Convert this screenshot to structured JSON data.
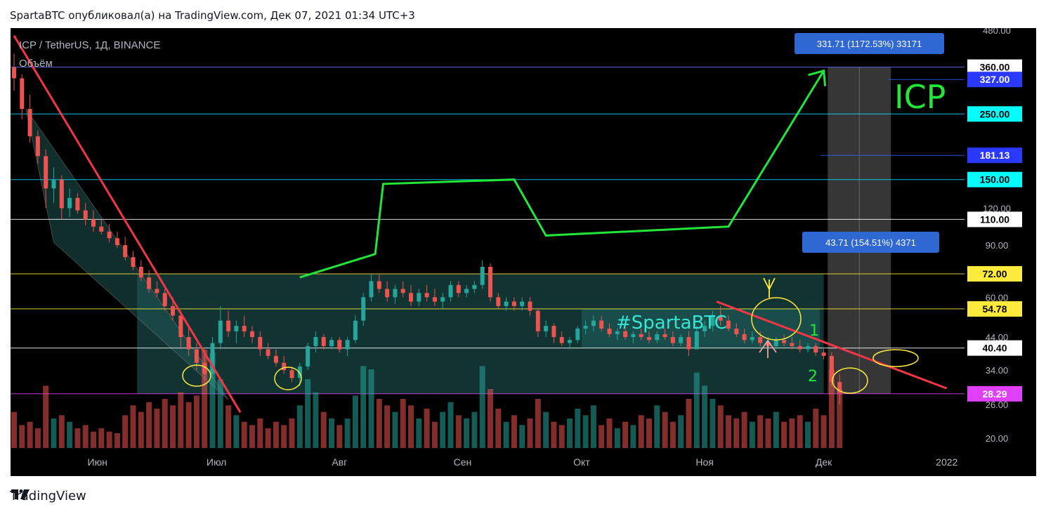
{
  "header": {
    "published_text": "SpartaBTC опубликовал(а) на TradingView.com, Дек 07, 2021 01:34 UTC+3"
  },
  "footer": {
    "brand": "TradingView"
  },
  "colors": {
    "background": "#000000",
    "up": "#26a69a",
    "down": "#ef5350",
    "trend_line": "#f23645",
    "forecast_path": "#22e53a",
    "range_box": "#1f5c59",
    "projection_box": "#404040",
    "annotation": "#ffeb3b"
  },
  "chart_data": {
    "type": "candlestick",
    "symbol_label": "ICP / TetherUS, 1Д, BINANCE",
    "volume_label": "Объём",
    "watermark": "ICP",
    "hashtag": "#SpartaBTC",
    "y_scale": "log",
    "ylim": [
      16,
      480
    ],
    "y_ticks": [
      "480.00",
      "120.00",
      "90.00",
      "60.00",
      "44.00",
      "34.00",
      "26.00",
      "20.00"
    ],
    "x_ticks": [
      "Июн",
      "Июл",
      "Авг",
      "Сен",
      "Окт",
      "Ноя",
      "Дек",
      "2022"
    ],
    "horizontal_levels": [
      {
        "value": 360.0,
        "label": "360.00",
        "color": "#6b73ff",
        "label_bg": "#ffffff",
        "label_fg": "#000000"
      },
      {
        "value": 327.0,
        "label": "327.00",
        "color": "#2962ff",
        "label_bg": "#2b39ff",
        "label_fg": "#ffffff"
      },
      {
        "value": 250.0,
        "label": "250.00",
        "color": "#00e5ff",
        "label_bg": "#00ffff",
        "label_fg": "#000000"
      },
      {
        "value": 181.13,
        "label": "181.13",
        "color": "#2962ff",
        "label_bg": "#2b39ff",
        "label_fg": "#ffffff"
      },
      {
        "value": 150.0,
        "label": "150.00",
        "color": "#00e5ff",
        "label_bg": "#00ffff",
        "label_fg": "#000000"
      },
      {
        "value": 110.0,
        "label": "110.00",
        "color": "#ffffff",
        "label_bg": "#ffffff",
        "label_fg": "#000000"
      },
      {
        "value": 72.0,
        "label": "72.00",
        "color": "#ffeb3b",
        "label_bg": "#ffeb3b",
        "label_fg": "#000000"
      },
      {
        "value": 54.78,
        "label": "54.78",
        "color": "#ffeb3b",
        "label_bg": "#ffeb3b",
        "label_fg": "#000000"
      },
      {
        "value": 40.4,
        "label": "40.40",
        "color": "#ffffff",
        "label_bg": "#ffffff",
        "label_fg": "#000000"
      },
      {
        "value": 28.29,
        "label": "28.29",
        "color": "#e040fb",
        "label_bg": "#e040fb",
        "label_fg": "#ffffff"
      }
    ],
    "measure_labels": [
      {
        "text": "331.71 (1172.53%) 33171"
      },
      {
        "text": "43.71 (154.51%) 4371"
      }
    ],
    "wave_labels": [
      "1",
      "2"
    ],
    "forecast_path": [
      {
        "date": "2021-07-22",
        "price": 70
      },
      {
        "date": "2021-08-10",
        "price": 84
      },
      {
        "date": "2021-08-12",
        "price": 145
      },
      {
        "date": "2021-09-14",
        "price": 150
      },
      {
        "date": "2021-09-22",
        "price": 97
      },
      {
        "date": "2021-11-07",
        "price": 104
      },
      {
        "date": "2021-12-01",
        "price": 350
      }
    ],
    "trend_lines": [
      {
        "from": {
          "date": "2021-05-11",
          "price": 460
        },
        "to": {
          "date": "2021-07-07",
          "price": 24.5
        }
      },
      {
        "from": {
          "date": "2021-11-04",
          "price": 58
        },
        "to": {
          "date": "2022-01-01",
          "price": 29.5
        }
      }
    ],
    "ohlc": [
      [
        "2021-05-11",
        360,
        400,
        300,
        330
      ],
      [
        "2021-05-13",
        330,
        340,
        240,
        260
      ],
      [
        "2021-05-15",
        260,
        290,
        200,
        210
      ],
      [
        "2021-05-17",
        210,
        220,
        170,
        180
      ],
      [
        "2021-05-19",
        180,
        190,
        120,
        140
      ],
      [
        "2021-05-21",
        140,
        165,
        125,
        150
      ],
      [
        "2021-05-23",
        150,
        155,
        110,
        120
      ],
      [
        "2021-05-25",
        120,
        140,
        112,
        130
      ],
      [
        "2021-05-27",
        130,
        135,
        115,
        118
      ],
      [
        "2021-05-29",
        118,
        125,
        105,
        110
      ],
      [
        "2021-05-31",
        110,
        118,
        100,
        104
      ],
      [
        "2021-06-02",
        104,
        110,
        98,
        100
      ],
      [
        "2021-06-04",
        100,
        106,
        92,
        95
      ],
      [
        "2021-06-06",
        95,
        100,
        88,
        90
      ],
      [
        "2021-06-08",
        90,
        96,
        80,
        82
      ],
      [
        "2021-06-10",
        82,
        86,
        74,
        76
      ],
      [
        "2021-06-12",
        76,
        80,
        68,
        70
      ],
      [
        "2021-06-14",
        70,
        74,
        62,
        64
      ],
      [
        "2021-06-16",
        64,
        68,
        60,
        62
      ],
      [
        "2021-06-18",
        62,
        64,
        54,
        56
      ],
      [
        "2021-06-20",
        56,
        60,
        50,
        52
      ],
      [
        "2021-06-22",
        52,
        54,
        40,
        44
      ],
      [
        "2021-06-24",
        44,
        48,
        38,
        40
      ],
      [
        "2021-06-26",
        40,
        42,
        34,
        36
      ],
      [
        "2021-06-28",
        36,
        40,
        30,
        33
      ],
      [
        "2021-06-30",
        33,
        44,
        32,
        42
      ],
      [
        "2021-07-02",
        42,
        56,
        40,
        50
      ],
      [
        "2021-07-04",
        50,
        54,
        44,
        46
      ],
      [
        "2021-07-06",
        46,
        50,
        42,
        48
      ],
      [
        "2021-07-08",
        48,
        52,
        44,
        46
      ],
      [
        "2021-07-10",
        46,
        48,
        42,
        44
      ],
      [
        "2021-07-12",
        44,
        46,
        38,
        40
      ],
      [
        "2021-07-14",
        40,
        42,
        37,
        38
      ],
      [
        "2021-07-16",
        38,
        40,
        35,
        36
      ],
      [
        "2021-07-18",
        36,
        38,
        33,
        34
      ],
      [
        "2021-07-20",
        34,
        35,
        31,
        32
      ],
      [
        "2021-07-22",
        32,
        36,
        30,
        35
      ],
      [
        "2021-07-24",
        35,
        42,
        34,
        41
      ],
      [
        "2021-07-26",
        41,
        46,
        39,
        44
      ],
      [
        "2021-07-28",
        44,
        45,
        40,
        41
      ],
      [
        "2021-07-30",
        41,
        44,
        40,
        43
      ],
      [
        "2021-08-01",
        43,
        44,
        39,
        40
      ],
      [
        "2021-08-03",
        40,
        44,
        38,
        43
      ],
      [
        "2021-08-05",
        43,
        52,
        42,
        50
      ],
      [
        "2021-08-07",
        50,
        62,
        48,
        60
      ],
      [
        "2021-08-09",
        60,
        72,
        58,
        68
      ],
      [
        "2021-08-11",
        68,
        72,
        62,
        64
      ],
      [
        "2021-08-13",
        64,
        68,
        58,
        60
      ],
      [
        "2021-08-15",
        60,
        66,
        57,
        64
      ],
      [
        "2021-08-17",
        64,
        68,
        60,
        62
      ],
      [
        "2021-08-19",
        62,
        66,
        56,
        58
      ],
      [
        "2021-08-21",
        58,
        64,
        56,
        62
      ],
      [
        "2021-08-23",
        62,
        66,
        58,
        60
      ],
      [
        "2021-08-25",
        60,
        64,
        56,
        58
      ],
      [
        "2021-08-27",
        58,
        62,
        55,
        60
      ],
      [
        "2021-08-29",
        60,
        68,
        58,
        66
      ],
      [
        "2021-08-31",
        66,
        68,
        60,
        62
      ],
      [
        "2021-09-02",
        62,
        66,
        60,
        64
      ],
      [
        "2021-09-04",
        64,
        68,
        62,
        66
      ],
      [
        "2021-09-06",
        66,
        80,
        64,
        76
      ],
      [
        "2021-09-08",
        76,
        78,
        58,
        60
      ],
      [
        "2021-09-10",
        60,
        62,
        55,
        56
      ],
      [
        "2021-09-12",
        56,
        60,
        54,
        58
      ],
      [
        "2021-09-14",
        58,
        60,
        54,
        56
      ],
      [
        "2021-09-16",
        56,
        60,
        54,
        58
      ],
      [
        "2021-09-18",
        58,
        60,
        52,
        54
      ],
      [
        "2021-09-20",
        54,
        55,
        44,
        46
      ],
      [
        "2021-09-22",
        46,
        50,
        44,
        48
      ],
      [
        "2021-09-24",
        48,
        49,
        42,
        44
      ],
      [
        "2021-09-26",
        44,
        46,
        41,
        42
      ],
      [
        "2021-09-28",
        42,
        44,
        40,
        43
      ],
      [
        "2021-09-30",
        43,
        48,
        42,
        47
      ],
      [
        "2021-10-02",
        47,
        50,
        45,
        48
      ],
      [
        "2021-10-04",
        48,
        52,
        46,
        50
      ],
      [
        "2021-10-06",
        50,
        52,
        46,
        47
      ],
      [
        "2021-10-08",
        47,
        49,
        44,
        45
      ],
      [
        "2021-10-10",
        45,
        47,
        43,
        46
      ],
      [
        "2021-10-12",
        46,
        48,
        43,
        44
      ],
      [
        "2021-10-14",
        44,
        46,
        42,
        45
      ],
      [
        "2021-10-16",
        45,
        47,
        43,
        44
      ],
      [
        "2021-10-18",
        44,
        46,
        42,
        43
      ],
      [
        "2021-10-20",
        43,
        46,
        42,
        45
      ],
      [
        "2021-10-22",
        45,
        47,
        43,
        44
      ],
      [
        "2021-10-24",
        44,
        46,
        41,
        42
      ],
      [
        "2021-10-26",
        42,
        45,
        41,
        44
      ],
      [
        "2021-10-28",
        44,
        46,
        38,
        40
      ],
      [
        "2021-10-30",
        40,
        48,
        40,
        46
      ],
      [
        "2021-11-01",
        46,
        50,
        44,
        48
      ],
      [
        "2021-11-03",
        48,
        54,
        46,
        52
      ],
      [
        "2021-11-05",
        52,
        56,
        48,
        50
      ],
      [
        "2021-11-07",
        50,
        52,
        46,
        47
      ],
      [
        "2021-11-09",
        47,
        49,
        44,
        45
      ],
      [
        "2021-11-11",
        45,
        47,
        42,
        43
      ],
      [
        "2021-11-13",
        43,
        46,
        42,
        44
      ],
      [
        "2021-11-15",
        44,
        46,
        41,
        42
      ],
      [
        "2021-11-17",
        42,
        44,
        40,
        41
      ],
      [
        "2021-11-19",
        41,
        44,
        40,
        43
      ],
      [
        "2021-11-21",
        43,
        45,
        41,
        42
      ],
      [
        "2021-11-23",
        42,
        44,
        40,
        41
      ],
      [
        "2021-11-25",
        41,
        43,
        39,
        40
      ],
      [
        "2021-11-27",
        40,
        42,
        39,
        41
      ],
      [
        "2021-11-29",
        41,
        42,
        38,
        39
      ],
      [
        "2021-12-01",
        39,
        40,
        37,
        38
      ],
      [
        "2021-12-03",
        38,
        39,
        30,
        31
      ],
      [
        "2021-12-05",
        31,
        33,
        26,
        28.5
      ]
    ],
    "volume": [
      [
        "2021-05-11",
        22
      ],
      [
        "2021-05-13",
        14
      ],
      [
        "2021-05-15",
        16
      ],
      [
        "2021-05-17",
        12
      ],
      [
        "2021-05-19",
        38
      ],
      [
        "2021-05-21",
        18
      ],
      [
        "2021-05-23",
        20
      ],
      [
        "2021-05-25",
        16
      ],
      [
        "2021-05-27",
        12
      ],
      [
        "2021-05-29",
        14
      ],
      [
        "2021-05-31",
        10
      ],
      [
        "2021-06-02",
        12
      ],
      [
        "2021-06-04",
        10
      ],
      [
        "2021-06-06",
        9
      ],
      [
        "2021-06-08",
        20
      ],
      [
        "2021-06-10",
        26
      ],
      [
        "2021-06-12",
        22
      ],
      [
        "2021-06-14",
        28
      ],
      [
        "2021-06-16",
        24
      ],
      [
        "2021-06-18",
        30
      ],
      [
        "2021-06-20",
        26
      ],
      [
        "2021-06-22",
        34
      ],
      [
        "2021-06-24",
        28
      ],
      [
        "2021-06-26",
        32
      ],
      [
        "2021-06-28",
        60
      ],
      [
        "2021-06-30",
        58
      ],
      [
        "2021-07-02",
        42
      ],
      [
        "2021-07-04",
        26
      ],
      [
        "2021-07-06",
        20
      ],
      [
        "2021-07-08",
        16
      ],
      [
        "2021-07-10",
        14
      ],
      [
        "2021-07-12",
        18
      ],
      [
        "2021-07-14",
        12
      ],
      [
        "2021-07-16",
        16
      ],
      [
        "2021-07-18",
        14
      ],
      [
        "2021-07-20",
        18
      ],
      [
        "2021-07-22",
        26
      ],
      [
        "2021-07-24",
        42
      ],
      [
        "2021-07-26",
        34
      ],
      [
        "2021-07-28",
        22
      ],
      [
        "2021-07-30",
        18
      ],
      [
        "2021-08-01",
        14
      ],
      [
        "2021-08-03",
        18
      ],
      [
        "2021-08-05",
        32
      ],
      [
        "2021-08-07",
        50
      ],
      [
        "2021-08-09",
        48
      ],
      [
        "2021-08-11",
        30
      ],
      [
        "2021-08-13",
        26
      ],
      [
        "2021-08-15",
        22
      ],
      [
        "2021-08-17",
        30
      ],
      [
        "2021-08-19",
        26
      ],
      [
        "2021-08-21",
        18
      ],
      [
        "2021-08-23",
        24
      ],
      [
        "2021-08-25",
        16
      ],
      [
        "2021-08-27",
        22
      ],
      [
        "2021-08-29",
        28
      ],
      [
        "2021-08-31",
        20
      ],
      [
        "2021-09-02",
        18
      ],
      [
        "2021-09-04",
        22
      ],
      [
        "2021-09-06",
        50
      ],
      [
        "2021-09-08",
        36
      ],
      [
        "2021-09-10",
        24
      ],
      [
        "2021-09-12",
        16
      ],
      [
        "2021-09-14",
        20
      ],
      [
        "2021-09-16",
        14
      ],
      [
        "2021-09-18",
        18
      ],
      [
        "2021-09-20",
        30
      ],
      [
        "2021-09-22",
        22
      ],
      [
        "2021-09-24",
        16
      ],
      [
        "2021-09-26",
        14
      ],
      [
        "2021-09-28",
        18
      ],
      [
        "2021-09-30",
        24
      ],
      [
        "2021-10-02",
        20
      ],
      [
        "2021-10-04",
        26
      ],
      [
        "2021-10-06",
        14
      ],
      [
        "2021-10-08",
        18
      ],
      [
        "2021-10-10",
        12
      ],
      [
        "2021-10-12",
        16
      ],
      [
        "2021-10-14",
        14
      ],
      [
        "2021-10-16",
        20
      ],
      [
        "2021-10-18",
        18
      ],
      [
        "2021-10-20",
        26
      ],
      [
        "2021-10-22",
        22
      ],
      [
        "2021-10-24",
        16
      ],
      [
        "2021-10-26",
        20
      ],
      [
        "2021-10-28",
        30
      ],
      [
        "2021-10-30",
        46
      ],
      [
        "2021-11-01",
        38
      ],
      [
        "2021-11-03",
        30
      ],
      [
        "2021-11-05",
        26
      ],
      [
        "2021-11-07",
        20
      ],
      [
        "2021-11-09",
        18
      ],
      [
        "2021-11-11",
        22
      ],
      [
        "2021-11-13",
        16
      ],
      [
        "2021-11-15",
        20
      ],
      [
        "2021-11-17",
        18
      ],
      [
        "2021-11-19",
        22
      ],
      [
        "2021-11-21",
        16
      ],
      [
        "2021-11-23",
        18
      ],
      [
        "2021-11-25",
        20
      ],
      [
        "2021-11-27",
        16
      ],
      [
        "2021-11-29",
        24
      ],
      [
        "2021-12-01",
        20
      ],
      [
        "2021-12-03",
        48
      ],
      [
        "2021-12-05",
        36
      ]
    ]
  }
}
